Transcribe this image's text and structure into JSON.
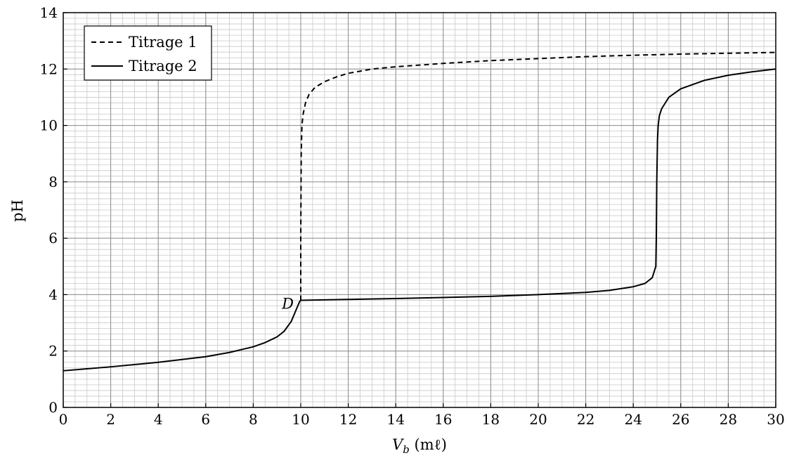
{
  "chart_data": {
    "type": "line",
    "xlabel": {
      "main": "V",
      "sub": "b",
      "unit": " (mℓ)"
    },
    "ylabel": "pH",
    "xlim": [
      0,
      30
    ],
    "ylim": [
      0,
      14
    ],
    "xticks": [
      0,
      2,
      4,
      6,
      8,
      10,
      12,
      14,
      16,
      18,
      20,
      22,
      24,
      26,
      28,
      30
    ],
    "yticks": [
      0,
      2,
      4,
      6,
      8,
      10,
      12,
      14
    ],
    "grid": {
      "major": true,
      "minor": true,
      "minor_x_step": 0.5,
      "minor_y_step": 0.2
    },
    "legend_position": "top-left",
    "series": [
      {
        "name": "Titrage 1",
        "style": "dashed",
        "color": "#000000",
        "points": [
          [
            10.0,
            3.8
          ],
          [
            10.0,
            6.0
          ],
          [
            10.02,
            9.0
          ],
          [
            10.05,
            10.0
          ],
          [
            10.1,
            10.4
          ],
          [
            10.2,
            10.8
          ],
          [
            10.35,
            11.1
          ],
          [
            10.6,
            11.35
          ],
          [
            11.0,
            11.55
          ],
          [
            11.5,
            11.72
          ],
          [
            12.0,
            11.85
          ],
          [
            13.0,
            12.0
          ],
          [
            14.0,
            12.08
          ],
          [
            16.0,
            12.2
          ],
          [
            18.0,
            12.3
          ],
          [
            20.0,
            12.37
          ],
          [
            22.0,
            12.44
          ],
          [
            24.0,
            12.49
          ],
          [
            26.0,
            12.53
          ],
          [
            28.0,
            12.56
          ],
          [
            30.0,
            12.59
          ]
        ]
      },
      {
        "name": "Titrage 2",
        "style": "solid",
        "color": "#000000",
        "points": [
          [
            0,
            1.3
          ],
          [
            1,
            1.37
          ],
          [
            2,
            1.44
          ],
          [
            3,
            1.52
          ],
          [
            4,
            1.6
          ],
          [
            5,
            1.7
          ],
          [
            6,
            1.8
          ],
          [
            7,
            1.95
          ],
          [
            7.5,
            2.05
          ],
          [
            8,
            2.15
          ],
          [
            8.5,
            2.3
          ],
          [
            9.0,
            2.5
          ],
          [
            9.3,
            2.7
          ],
          [
            9.6,
            3.05
          ],
          [
            9.8,
            3.45
          ],
          [
            9.95,
            3.75
          ],
          [
            10.0,
            3.8
          ],
          [
            12,
            3.83
          ],
          [
            14,
            3.86
          ],
          [
            16,
            3.9
          ],
          [
            18,
            3.94
          ],
          [
            20,
            4.0
          ],
          [
            22,
            4.08
          ],
          [
            23,
            4.15
          ],
          [
            24,
            4.28
          ],
          [
            24.5,
            4.4
          ],
          [
            24.8,
            4.6
          ],
          [
            24.95,
            5.0
          ],
          [
            24.97,
            6.0
          ],
          [
            24.99,
            8.0
          ],
          [
            25.02,
            9.5
          ],
          [
            25.05,
            10.0
          ],
          [
            25.1,
            10.35
          ],
          [
            25.2,
            10.6
          ],
          [
            25.5,
            11.0
          ],
          [
            26.0,
            11.3
          ],
          [
            27.0,
            11.6
          ],
          [
            28.0,
            11.78
          ],
          [
            29.0,
            11.9
          ],
          [
            30.0,
            12.0
          ]
        ]
      }
    ],
    "annotations": [
      {
        "text": "D",
        "x": 10.0,
        "y": 3.8
      }
    ]
  }
}
